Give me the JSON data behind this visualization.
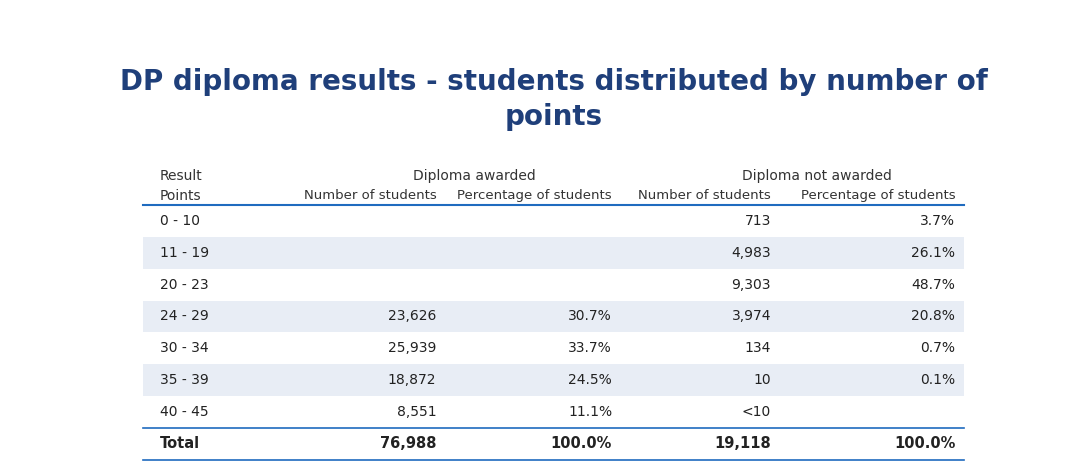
{
  "title": "DP diploma results - students distributed by number of\npoints",
  "title_color": "#1F3F7A",
  "background_color": "#FFFFFF",
  "rows": [
    {
      "points": "0 - 10",
      "da_num": "",
      "da_pct": "",
      "dna_num": "713",
      "dna_pct": "3.7%",
      "shade": false
    },
    {
      "points": "11 - 19",
      "da_num": "",
      "da_pct": "",
      "dna_num": "4,983",
      "dna_pct": "26.1%",
      "shade": true
    },
    {
      "points": "20 - 23",
      "da_num": "",
      "da_pct": "",
      "dna_num": "9,303",
      "dna_pct": "48.7%",
      "shade": false
    },
    {
      "points": "24 - 29",
      "da_num": "23,626",
      "da_pct": "30.7%",
      "dna_num": "3,974",
      "dna_pct": "20.8%",
      "shade": true
    },
    {
      "points": "30 - 34",
      "da_num": "25,939",
      "da_pct": "33.7%",
      "dna_num": "134",
      "dna_pct": "0.7%",
      "shade": false
    },
    {
      "points": "35 - 39",
      "da_num": "18,872",
      "da_pct": "24.5%",
      "dna_num": "10",
      "dna_pct": "0.1%",
      "shade": true
    },
    {
      "points": "40 - 45",
      "da_num": "8,551",
      "da_pct": "11.1%",
      "dna_num": "<10",
      "dna_pct": "",
      "shade": false
    }
  ],
  "total_row": {
    "points": "Total",
    "da_num": "76,988",
    "da_pct": "100.0%",
    "dna_num": "19,118",
    "dna_pct": "100.0%"
  },
  "shade_color": "#E8EDF5",
  "line_color": "#1F6BBF",
  "text_color": "#222222",
  "header_text_color": "#333333"
}
